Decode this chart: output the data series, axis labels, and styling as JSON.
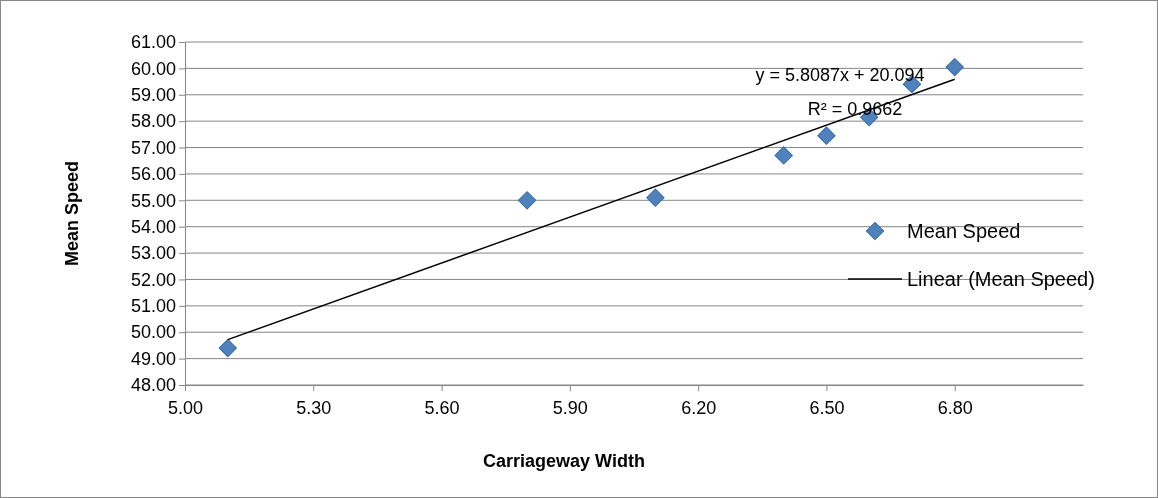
{
  "chart_data": {
    "type": "scatter",
    "xlabel": "Carriageway Width",
    "ylabel": "Mean Speed",
    "xlim": [
      5.0,
      7.1
    ],
    "xticks": [
      {
        "value": 5.0,
        "label": "5.00"
      },
      {
        "value": 5.3,
        "label": "5.30"
      },
      {
        "value": 5.6,
        "label": "5.60"
      },
      {
        "value": 5.9,
        "label": "5.90"
      },
      {
        "value": 6.2,
        "label": "6.20"
      },
      {
        "value": 6.5,
        "label": "6.50"
      },
      {
        "value": 6.8,
        "label": "6.80"
      }
    ],
    "ylim": [
      48,
      61
    ],
    "yticks": [
      {
        "value": 48,
        "label": "48.00"
      },
      {
        "value": 49,
        "label": "49.00"
      },
      {
        "value": 50,
        "label": "50.00"
      },
      {
        "value": 51,
        "label": "51.00"
      },
      {
        "value": 52,
        "label": "52.00"
      },
      {
        "value": 53,
        "label": "53.00"
      },
      {
        "value": 54,
        "label": "54.00"
      },
      {
        "value": 55,
        "label": "55.00"
      },
      {
        "value": 56,
        "label": "56.00"
      },
      {
        "value": 57,
        "label": "57.00"
      },
      {
        "value": 58,
        "label": "58.00"
      },
      {
        "value": 59,
        "label": "59.00"
      },
      {
        "value": 60,
        "label": "60.00"
      },
      {
        "value": 61,
        "label": "61.00"
      }
    ],
    "grid": "y",
    "legend": "right",
    "series": [
      {
        "name": "Mean Speed",
        "marker": "diamond",
        "color": "#4f81bd",
        "x": [
          5.1,
          5.8,
          6.1,
          6.4,
          6.5,
          6.6,
          6.7,
          6.8
        ],
        "values": [
          49.4,
          55.0,
          55.1,
          56.7,
          57.45,
          58.15,
          59.4,
          60.05
        ]
      },
      {
        "name": "Linear (Mean Speed)",
        "type": "line",
        "color": "#000000",
        "line_style": "solid",
        "x": [
          5.1,
          6.8
        ],
        "values": [
          49.72,
          59.59
        ]
      }
    ],
    "annotations": [
      "y = 5.8087x + 20.094",
      "R² = 0.9662"
    ]
  }
}
